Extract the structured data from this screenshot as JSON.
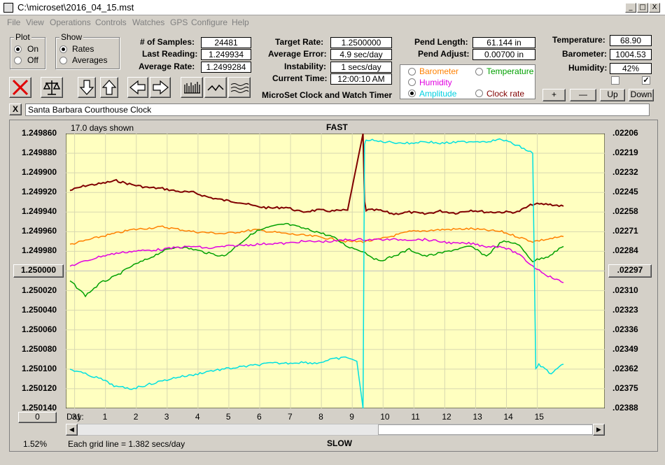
{
  "window": {
    "title": "C:\\microset\\2016_04_15.mst",
    "min": "_",
    "max": "□",
    "close": "X"
  },
  "menu": [
    "File",
    "View",
    "Operations",
    "Controls",
    "Watches",
    "GPS",
    "Configure",
    "Help"
  ],
  "plot_group": {
    "title": "Plot",
    "on": "On",
    "off": "Off",
    "selected": "On"
  },
  "show_group": {
    "title": "Show",
    "rates": "Rates",
    "averages": "Averages",
    "selected": "Rates"
  },
  "stats": {
    "samples_label": "# of Samples:",
    "samples": "24481",
    "last_label": "Last Reading:",
    "last": "1.249934",
    "avg_label": "Average Rate:",
    "avg": "1.2499284",
    "target_label": "Target Rate:",
    "target": "1.2500000",
    "avgerr_label": "Average Error:",
    "avgerr": "4.9 sec/day",
    "instab_label": "Instability:",
    "instab": "1 secs/day",
    "time_label": "Current Time:",
    "time": "12:00:10 AM",
    "pendlen_label": "Pend Length:",
    "pendlen": "61.144 in",
    "pendadj_label": "Pend Adjust:",
    "pendadj": "0.00700 in",
    "temp_label": "Temperature:",
    "temp": "68.90",
    "baro_label": "Barometer:",
    "baro": "1004.53",
    "hum_label": "Humidity:",
    "hum": "42%"
  },
  "app_name": "MicroSet Clock and Watch Timer",
  "sensors": {
    "barometer": {
      "label": "Barometer",
      "color": "#ff8000"
    },
    "temperature": {
      "label": "Temperature",
      "color": "#00a000"
    },
    "humidity": {
      "label": "Humidity",
      "color": "#e000e0"
    },
    "amplitude": {
      "label": "Amplitude",
      "color": "#00e0e0"
    },
    "clockrate": {
      "label": "Clock rate",
      "color": "#800000"
    },
    "selected": "Amplitude"
  },
  "adjust_buttons": {
    "plus": "+",
    "minus": "—",
    "up": "Up",
    "down": "Down"
  },
  "clock_name": "Santa Barbara Courthouse Clock",
  "close_x": "X",
  "plot": {
    "days_shown": "17.0 days shown",
    "fast": "FAST",
    "slow": "SLOW",
    "left_ticks": [
      "1.249860",
      "1.249880",
      "1.249900",
      "1.249920",
      "1.249940",
      "1.249960",
      "1.249980",
      "1.250000",
      "1.250020",
      "1.250040",
      "1.250060",
      "1.250080",
      "1.250100",
      "1.250120",
      "1.250140"
    ],
    "right_ticks": [
      ".02206",
      ".02219",
      ".02232",
      ".02245",
      ".02258",
      ".02271",
      ".02284",
      ".02297",
      ".02310",
      ".02323",
      ".02336",
      ".02349",
      ".02362",
      ".02375",
      ".02388"
    ],
    "day_label": "Day:",
    "days": [
      "31",
      "1",
      "2",
      "3",
      "4",
      "5",
      "6",
      "7",
      "8",
      "9",
      "10",
      "11",
      "12",
      "13",
      "14",
      "15"
    ],
    "center_left": "1.250000",
    "center_right": ".02297",
    "zero_btn": "0",
    "pct": "1.52%",
    "gridline_note": "Each grid line = 1.382 secs/day",
    "bg": "#ffffc0"
  },
  "chart_data": {
    "type": "line",
    "x_unit": "days",
    "x_ticks": [
      "31",
      "1",
      "2",
      "3",
      "4",
      "5",
      "6",
      "7",
      "8",
      "9",
      "10",
      "11",
      "12",
      "13",
      "14",
      "15"
    ],
    "ylim": [
      1.25014,
      1.24986
    ],
    "series": [
      {
        "name": "Clock rate",
        "color": "#800000",
        "x": [
          0,
          0.5,
          1,
          1.5,
          2,
          2.5,
          3,
          3.5,
          4,
          4.5,
          5,
          5.5,
          6,
          6.5,
          7,
          7.5,
          8,
          8.5,
          9,
          9.5,
          9.55,
          9.6,
          10,
          10.5,
          11,
          11.5,
          12,
          12.5,
          13,
          13.5,
          14,
          14.5,
          15,
          15.5,
          16
        ],
        "y": [
          1.249918,
          1.249913,
          1.249911,
          1.249908,
          1.249912,
          1.249915,
          1.249916,
          1.249919,
          1.24992,
          1.249925,
          1.249928,
          1.24993,
          1.249934,
          1.249936,
          1.249935,
          1.24994,
          1.249938,
          1.249939,
          1.249938,
          1.24986,
          1.24993,
          1.249938,
          1.249938,
          1.249942,
          1.24994,
          1.249942,
          1.249939,
          1.249941,
          1.249938,
          1.24994,
          1.24994,
          1.24994,
          1.249932,
          1.249932,
          1.249934
        ]
      },
      {
        "name": "Barometer",
        "color": "#ff8000",
        "x": [
          0,
          1,
          2,
          3,
          4,
          5,
          6,
          7,
          8,
          9,
          9.5,
          10,
          11,
          12,
          13,
          14,
          15,
          16
        ],
        "y": [
          1.249973,
          1.249965,
          1.249958,
          1.249955,
          1.24996,
          1.249962,
          1.249958,
          1.249962,
          1.249965,
          1.24997,
          1.24997,
          1.249968,
          1.24996,
          1.249958,
          1.249957,
          1.24996,
          1.24997,
          1.249965
        ]
      },
      {
        "name": "Temperature",
        "color": "#00a000",
        "x": [
          0,
          0.5,
          1,
          1.5,
          2,
          2.5,
          3,
          3.5,
          4,
          4.5,
          5,
          5.5,
          6,
          6.5,
          7,
          7.5,
          8,
          8.5,
          9,
          9.5,
          10,
          10.5,
          11,
          11.5,
          12,
          12.5,
          13,
          13.5,
          14,
          14.5,
          15,
          15.5,
          16
        ],
        "y": [
          1.25001,
          1.250025,
          1.250012,
          1.250005,
          1.249995,
          1.249988,
          1.24998,
          1.249975,
          1.249978,
          1.249982,
          1.249985,
          1.249972,
          1.24996,
          1.249955,
          1.249952,
          1.249956,
          1.24996,
          1.249965,
          1.249975,
          1.24998,
          1.24999,
          1.249985,
          1.249978,
          1.249985,
          1.249982,
          1.249978,
          1.249975,
          1.249985,
          1.24997,
          1.249972,
          1.24999,
          1.249985,
          1.249975
        ]
      },
      {
        "name": "Humidity",
        "color": "#e000e0",
        "x": [
          0,
          0.5,
          1,
          1.5,
          2,
          2.5,
          3,
          3.5,
          4,
          4.5,
          5,
          5.5,
          6,
          6.5,
          7,
          7.5,
          8,
          8.5,
          9,
          9.5,
          10,
          10.5,
          11,
          11.5,
          12,
          12.5,
          13,
          13.5,
          14,
          14.5,
          15,
          15.5,
          16
        ],
        "y": [
          1.249995,
          1.24999,
          1.249985,
          1.249982,
          1.24998,
          1.249979,
          1.249978,
          1.249976,
          1.249975,
          1.249977,
          1.249975,
          1.249974,
          1.249973,
          1.249972,
          1.249972,
          1.24997,
          1.24997,
          1.24997,
          1.249968,
          1.249968,
          1.249968,
          1.249968,
          1.249968,
          1.249968,
          1.24997,
          1.249972,
          1.249972,
          1.249975,
          1.249975,
          1.249982,
          1.249995,
          1.250005,
          1.250012
        ]
      },
      {
        "name": "Amplitude",
        "color": "#00e0e0",
        "x": [
          0,
          0.5,
          1,
          1.5,
          2,
          2.5,
          3,
          3.5,
          4,
          4.5,
          5,
          5.5,
          6,
          6.5,
          7,
          7.5,
          8,
          8.5,
          9,
          9.3,
          9.5,
          9.55,
          9.6,
          10,
          10.5,
          11,
          11.5,
          12,
          12.5,
          13,
          13.5,
          14,
          14.5,
          15,
          15.1,
          15.2,
          15.4,
          15.6,
          16
        ],
        "y": [
          1.2501,
          1.250105,
          1.25011,
          1.250118,
          1.25012,
          1.250116,
          1.250112,
          1.250108,
          1.250106,
          1.250102,
          1.2501,
          1.250098,
          1.250096,
          1.250094,
          1.250094,
          1.250093,
          1.250094,
          1.25009,
          1.250088,
          1.250092,
          1.25014,
          1.249872,
          1.249866,
          1.249868,
          1.249869,
          1.24987,
          1.249868,
          1.24987,
          1.249869,
          1.249868,
          1.249868,
          1.249866,
          1.249872,
          1.24988,
          1.2501,
          1.250095,
          1.2501,
          1.250105,
          1.250095
        ]
      }
    ]
  }
}
